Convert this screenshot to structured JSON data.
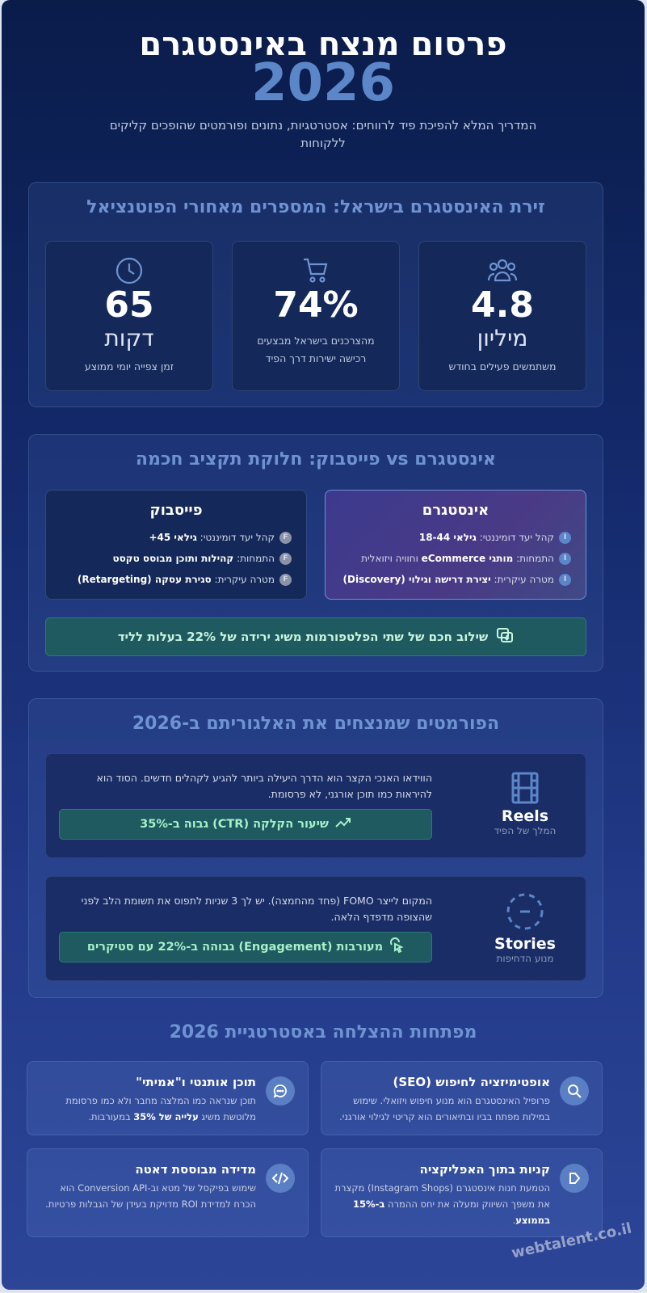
{
  "header": {
    "title": "פרסום מנצח באינסטגרם",
    "year": "2026",
    "subtitle": "המדריך המלא להפיכת פיד לרווחים: אסטרטגיות, נתונים ופורמטים שהופכים קליקים ללקוחות"
  },
  "stats": {
    "title": "זירת האינסטגרם בישראל: המספרים מאחורי הפוטנציאל",
    "items": [
      {
        "icon": "users-icon",
        "value": "4.8",
        "unit": "מיליון",
        "label": "משתמשים פעילים בחודש"
      },
      {
        "icon": "cart-icon",
        "value": "74%",
        "unit": "",
        "label": "מהצרכנים בישראל מבצעים רכישה ישירות דרך הפיד"
      },
      {
        "icon": "clock-icon",
        "value": "65",
        "unit": "דקות",
        "label": "זמן צפייה יומי ממוצע"
      }
    ]
  },
  "compare": {
    "title": "אינסטגרם vs פייסבוק: חלוקת תקציב חכמה",
    "instagram": {
      "name": "אינסטגרם",
      "badge": "I",
      "rows": [
        {
          "pre": "קהל יעד דומיננטי: ",
          "bold": "גילאי 18-44",
          "post": ""
        },
        {
          "pre": "התמחות: ",
          "bold": "מותגי eCommerce",
          "post": " וחוויה ויזואלית"
        },
        {
          "pre": "מטרה עיקרית: ",
          "bold": "יצירת דרישה וגילוי (Discovery)",
          "post": ""
        }
      ]
    },
    "facebook": {
      "name": "פייסבוק",
      "badge": "F",
      "rows": [
        {
          "pre": "קהל יעד דומיננטי: ",
          "bold": "גילאי 45+",
          "post": ""
        },
        {
          "pre": "התמחות: ",
          "bold": "קהילות ותוכן מבוסס טקסט",
          "post": ""
        },
        {
          "pre": "מטרה עיקרית: ",
          "bold": "סגירת עסקה (Retargeting)",
          "post": ""
        }
      ]
    },
    "tip": "שילוב חכם של שתי הפלטפורמות משיג ירידה של 22% בעלות לליד"
  },
  "formats": {
    "title": "הפורמטים שמנצחים את האלגוריתם ב-2026",
    "items": [
      {
        "name": "Reels",
        "tagline": "המלך של הפיד",
        "icon": "film-icon",
        "desc": "הווידאו האנכי הקצר הוא הדרך היעילה ביותר להגיע לקהלים חדשים. הסוד הוא להיראות כמו תוכן אורגני, לא פרסומת.",
        "stat": "שיעור הקלקה (CTR) גבוה ב-35%",
        "stat_icon": "trending-up-icon"
      },
      {
        "name": "Stories",
        "tagline": "מנוע הדחיפות",
        "icon": "dashed-circle-icon",
        "desc": "המקום לייצר FOMO (פחד מהחמצה). יש לך 3 שניות לתפוס את תשומת הלב לפני שהצופה מדפדף הלאה.",
        "stat": "מעורבות (Engagement) גבוהה ב-22% עם סטיקרים",
        "stat_icon": "pointer-click-icon"
      }
    ]
  },
  "keys": {
    "title": "מפתחות ההצלחה באסטרטגיית 2026",
    "items": [
      {
        "icon": "search-icon",
        "title": "אופטימיזציה לחיפוש (SEO)",
        "pre": "פרופיל האינסטגרם הוא מנוע חיפוש ויזואלי. שימוש במילות מפתח בביו ובתיאורים הוא קריטי לגילוי אורגני.",
        "bold": "",
        "post": ""
      },
      {
        "icon": "chat-icon",
        "title": "תוכן אותנטי ו\"אמיתי\"",
        "pre": "תוכן שנראה כמו המלצה מחבר ולא כמו פרסומת מלוטשת משיג ",
        "bold": "עלייה של 35%",
        "post": " במעורבות."
      },
      {
        "icon": "tag-icon",
        "title": "קניות בתוך האפליקציה",
        "pre": "הטמעת חנות אינסטגרם (Instagram Shops) מקצרת את משפך השיווק ומעלה את יחס ההמרה ",
        "bold": "ב-15% בממוצע",
        "post": "."
      },
      {
        "icon": "code-icon",
        "title": "מדידה מבוססת דאטה",
        "pre": "שימוש בפיקסל של מטא וב-Conversion API הוא הכרח למדידת ROI מדויקת בעידן של הגבלות פרטיות.",
        "bold": "",
        "post": ""
      }
    ]
  },
  "watermark": "webtalent.co.il",
  "colors": {
    "accent": "#5b86c8",
    "success_bg": "#1f5a61",
    "success_text": "#a8f0c8"
  }
}
